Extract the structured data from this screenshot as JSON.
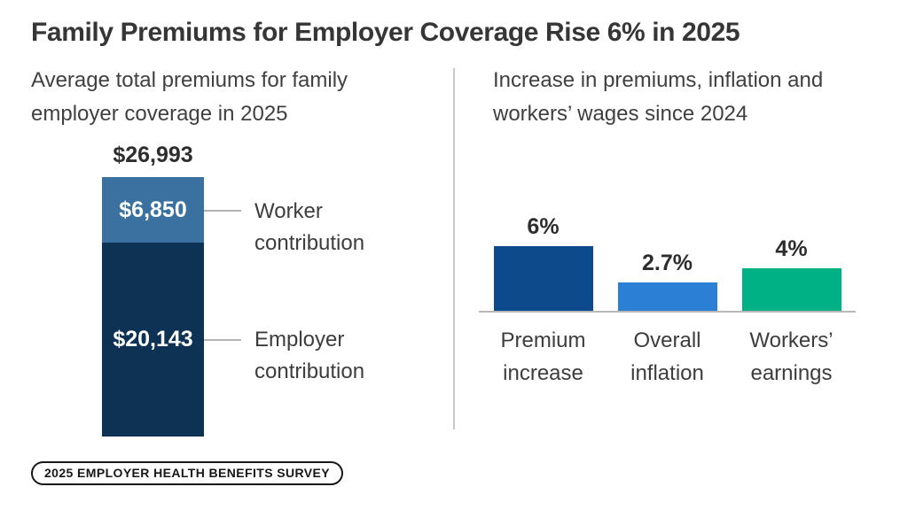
{
  "header": {
    "title": "Family Premiums for Employer Coverage Rise 6% in 2025"
  },
  "footer": {
    "badge": "2025 EMPLOYER HEALTH BENEFITS SURVEY"
  },
  "colors": {
    "worker_blue": "#3A71A0",
    "employer_navy": "#0D3254",
    "premium_navy": "#0D4A8C",
    "inflation_blue": "#2B80D6",
    "earnings_green": "#00B186",
    "divider_gray": "#C9C9C9",
    "axis_gray": "#B9B9B9"
  },
  "chart_data": [
    {
      "type": "bar",
      "variant": "single-stacked-column",
      "title": "Average total premiums for family employer coverage in 2025",
      "total": 26993,
      "total_label": "$26,993",
      "unit": "USD",
      "segments": [
        {
          "name": "Worker contribution",
          "value": 6850,
          "label": "$6,850",
          "color": "#3A71A0"
        },
        {
          "name": "Employer contribution",
          "value": 20143,
          "label": "$20,143",
          "color": "#0D3254"
        }
      ],
      "legend_position": "right-of-bar",
      "grid": false
    },
    {
      "type": "bar",
      "title": "Increase in premiums, inflation and workers’ wages since 2024",
      "categories": [
        "Premium increase",
        "Overall inflation",
        "Workers’ earnings"
      ],
      "values": [
        6,
        2.7,
        4
      ],
      "value_labels": [
        "6%",
        "2.7%",
        "4%"
      ],
      "colors": [
        "#0D4A8C",
        "#2B80D6",
        "#00B186"
      ],
      "unit": "%",
      "ylim": [
        0,
        6
      ],
      "grid": false,
      "legend_position": "none"
    }
  ]
}
